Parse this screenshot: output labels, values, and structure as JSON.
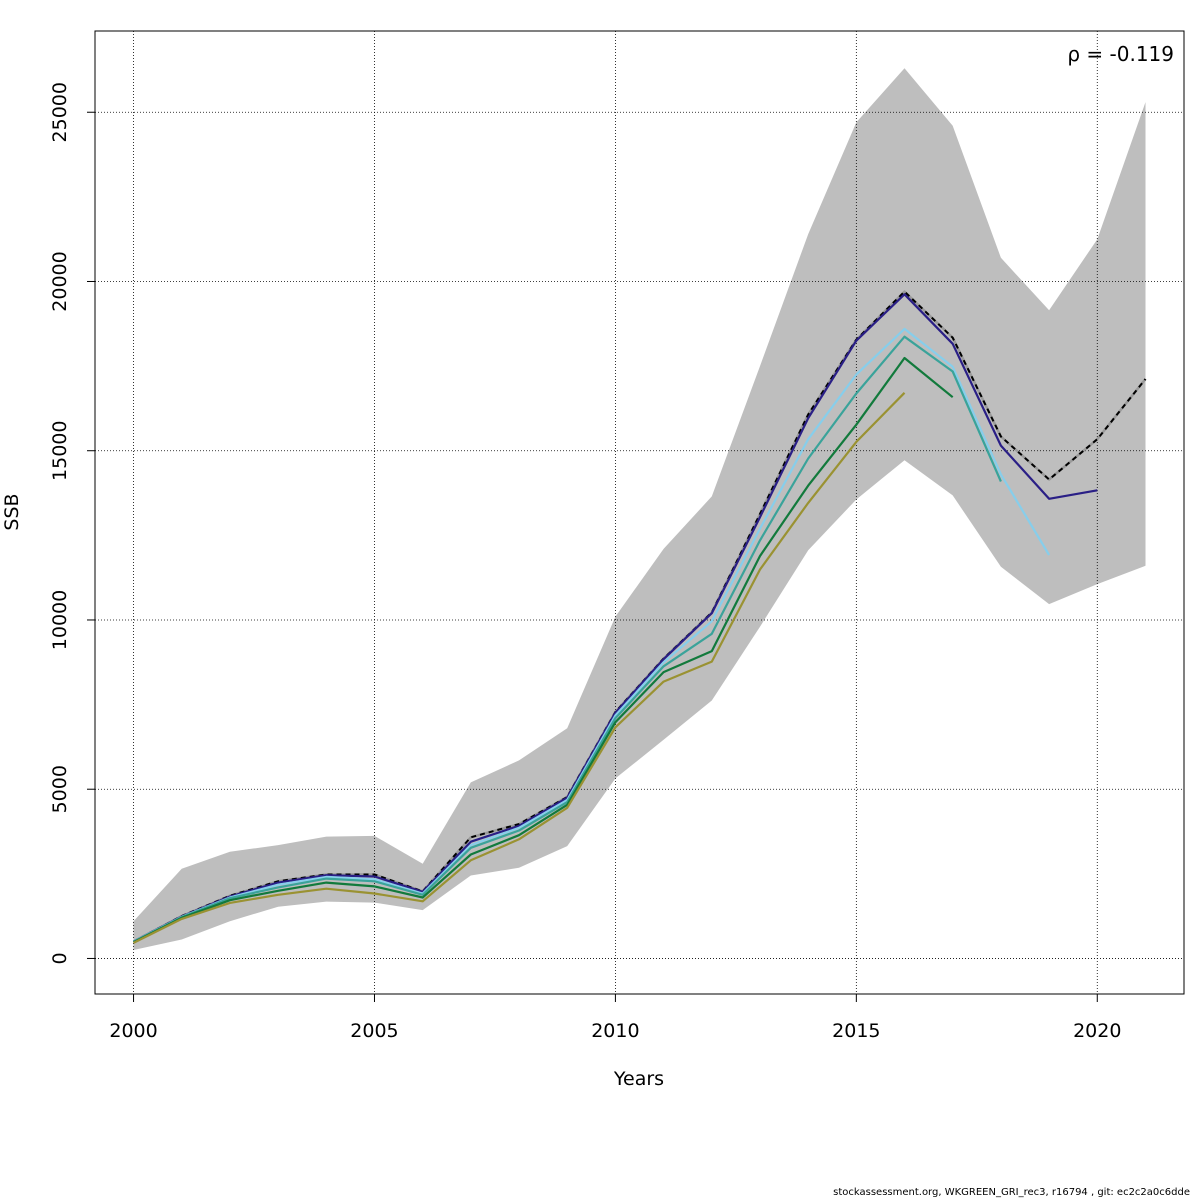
{
  "chart_data": {
    "type": "line",
    "xlabel": "Years",
    "ylabel": "SSB",
    "annotation": "ρ = -0.119",
    "xlim": [
      1999.2,
      2021.8
    ],
    "ylim": [
      -1050,
      27400
    ],
    "x_ticks": [
      2000,
      2005,
      2010,
      2015,
      2020
    ],
    "y_ticks": [
      0,
      5000,
      10000,
      15000,
      20000,
      25000
    ],
    "grid": true,
    "band": {
      "color": "#bebebe",
      "years": [
        2000,
        2001,
        2002,
        2003,
        2004,
        2005,
        2006,
        2007,
        2008,
        2009,
        2010,
        2011,
        2012,
        2013,
        2014,
        2015,
        2016,
        2017,
        2018,
        2019,
        2020,
        2021
      ],
      "upper": [
        1100,
        2650,
        3150,
        3350,
        3600,
        3620,
        2800,
        5200,
        5850,
        6800,
        10100,
        12100,
        13650,
        17500,
        21400,
        24700,
        26300,
        24600,
        20700,
        19150,
        21250,
        25300
      ],
      "lower": [
        250,
        560,
        1100,
        1530,
        1680,
        1650,
        1430,
        2450,
        2680,
        3320,
        5320,
        6460,
        7620,
        9800,
        12060,
        13560,
        14720,
        13680,
        11570,
        10470,
        11060,
        11600
      ]
    },
    "series": [
      {
        "color": "#000000",
        "dashed": true,
        "x": [
          2000,
          2001,
          2002,
          2003,
          2004,
          2005,
          2006,
          2007,
          2008,
          2009,
          2010,
          2011,
          2012,
          2013,
          2014,
          2015,
          2016,
          2017,
          2018,
          2019,
          2020,
          2021
        ],
        "values": [
          500,
          1250,
          1850,
          2280,
          2480,
          2480,
          1980,
          3580,
          3970,
          4770,
          7280,
          8860,
          10220,
          13130,
          16070,
          18280,
          19700,
          18340,
          15420,
          14150,
          15340,
          17120
        ]
      },
      {
        "color": "#2a1f86",
        "x": [
          2000,
          2001,
          2002,
          2003,
          2004,
          2005,
          2006,
          2007,
          2008,
          2009,
          2010,
          2011,
          2012,
          2013,
          2014,
          2015,
          2016,
          2017,
          2018,
          2019,
          2020
        ],
        "values": [
          500,
          1240,
          1830,
          2240,
          2460,
          2420,
          1970,
          3450,
          3920,
          4750,
          7260,
          8840,
          10200,
          13040,
          15960,
          18250,
          19620,
          18160,
          15150,
          13580,
          13830
        ]
      },
      {
        "color": "#87ceeb",
        "x": [
          2000,
          2001,
          2002,
          2003,
          2004,
          2005,
          2006,
          2007,
          2008,
          2009,
          2010,
          2011,
          2012,
          2013,
          2014,
          2015,
          2016,
          2017,
          2018,
          2019
        ],
        "values": [
          500,
          1230,
          1800,
          2180,
          2410,
          2340,
          1920,
          3350,
          3860,
          4680,
          7180,
          8750,
          9960,
          12700,
          15340,
          17250,
          18600,
          17480,
          14300,
          11920
        ]
      },
      {
        "color": "#3aa39a",
        "x": [
          2000,
          2001,
          2002,
          2003,
          2004,
          2005,
          2006,
          2007,
          2008,
          2009,
          2010,
          2011,
          2012,
          2013,
          2014,
          2015,
          2016,
          2017,
          2018
        ],
        "values": [
          490,
          1220,
          1780,
          2100,
          2360,
          2280,
          1880,
          3270,
          3780,
          4620,
          7100,
          8630,
          9590,
          12350,
          14770,
          16690,
          18370,
          17340,
          14090
        ]
      },
      {
        "color": "#127a3c",
        "x": [
          2000,
          2001,
          2002,
          2003,
          2004,
          2005,
          2006,
          2007,
          2008,
          2009,
          2010,
          2011,
          2012,
          2013,
          2014,
          2015,
          2016,
          2017
        ],
        "values": [
          480,
          1200,
          1720,
          2000,
          2240,
          2130,
          1800,
          3070,
          3640,
          4540,
          6980,
          8460,
          9080,
          11890,
          13970,
          15770,
          17740,
          16580
        ]
      },
      {
        "color": "#9a9232",
        "x": [
          2000,
          2001,
          2002,
          2003,
          2004,
          2005,
          2006,
          2007,
          2008,
          2009,
          2010,
          2011,
          2012,
          2013,
          2014,
          2015,
          2016
        ],
        "values": [
          460,
          1170,
          1640,
          1880,
          2060,
          1920,
          1690,
          2900,
          3520,
          4450,
          6830,
          8180,
          8770,
          11490,
          13460,
          15260,
          16710
        ]
      }
    ]
  },
  "footer": {
    "text": "stockassessment.org, WKGREEN_GRI_rec3, r16794 , git: ec2c2a0c6dde"
  }
}
